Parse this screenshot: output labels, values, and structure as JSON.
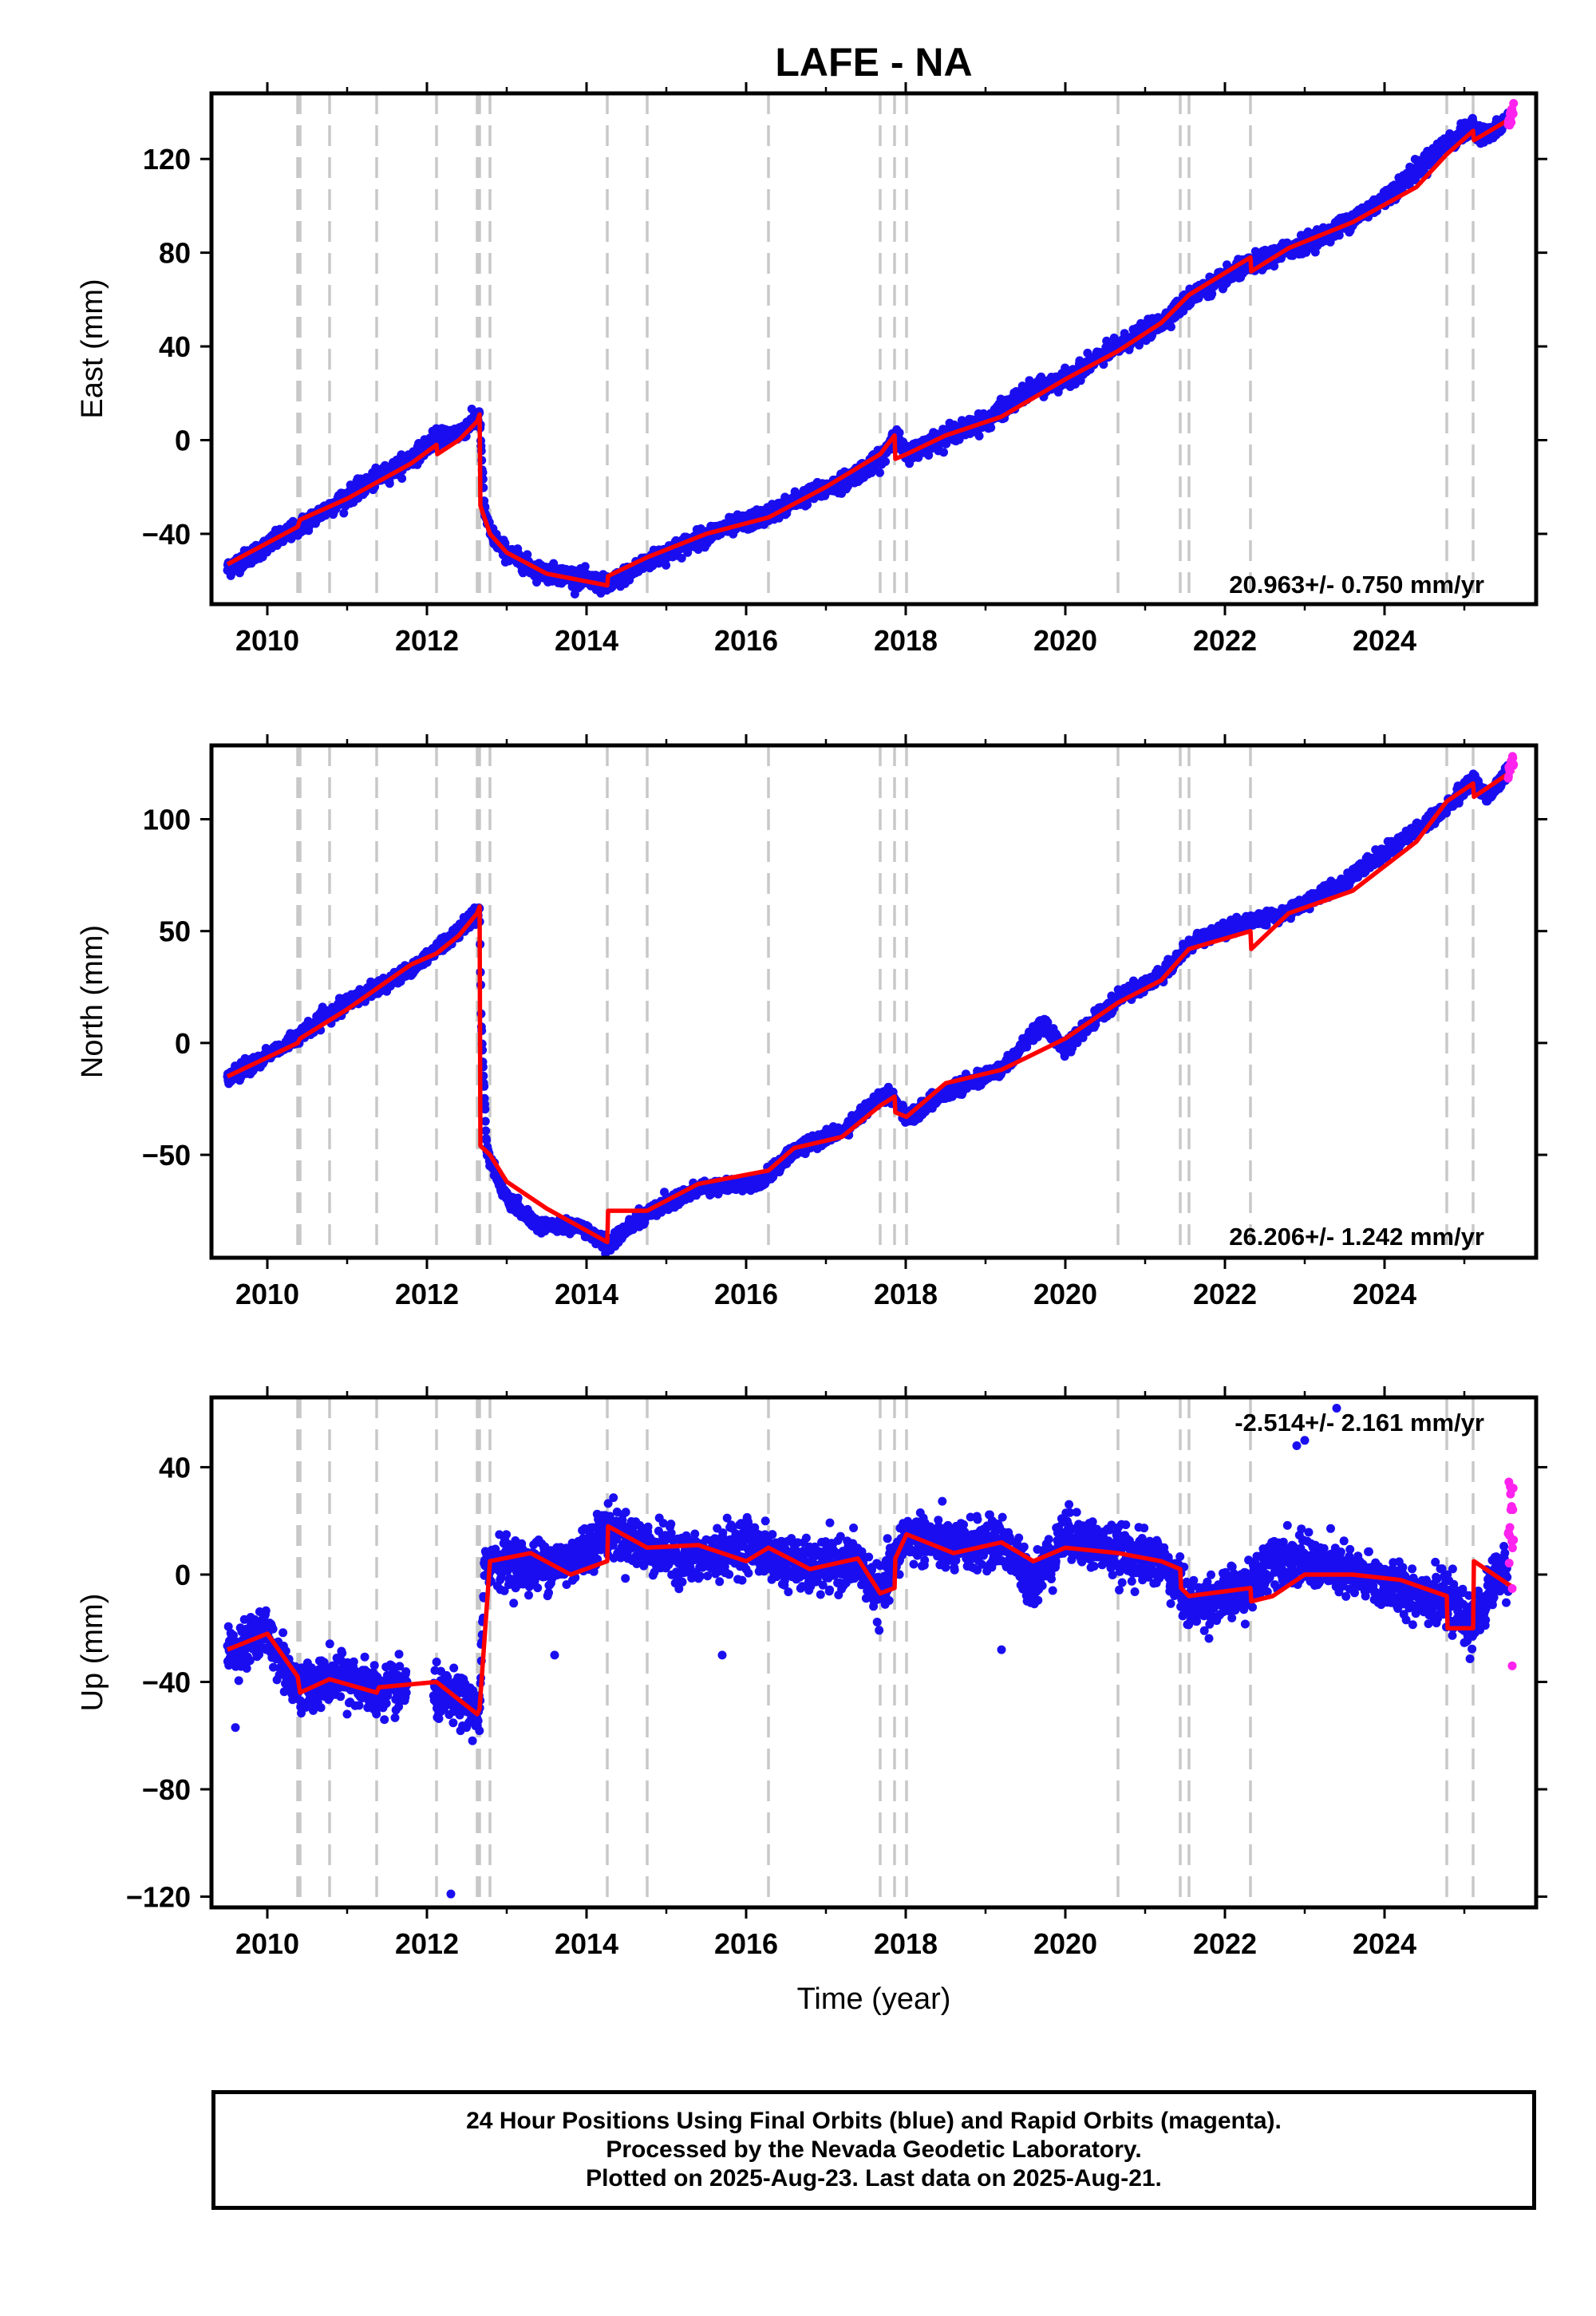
{
  "title": "LAFE - NA",
  "xlabel": "Time (year)",
  "colors": {
    "final": "#1a0ef0",
    "rapid": "#ff22ee",
    "model": "#ff0000",
    "step": "#c8c8c8"
  },
  "steps": [
    2010.38,
    2010.41,
    2010.78,
    2011.37,
    2012.12,
    2012.63,
    2012.66,
    2012.79,
    2014.26,
    2014.76,
    2016.28,
    2017.68,
    2017.86,
    2018.01,
    2020.66,
    2021.44,
    2021.55,
    2022.32,
    2024.78,
    2025.11
  ],
  "footer": {
    "line1": "24 Hour Positions Using Final Orbits (blue) and Rapid Orbits (magenta).",
    "line2": "Processed by the Nevada Geodetic Laboratory.",
    "line3": "Plotted on 2025-Aug-23. Last data on 2025-Aug-21."
  },
  "chart_data": [
    {
      "type": "scatter",
      "ylabel": "East (mm)",
      "rate": "20.963+/- 0.750 mm/yr",
      "xlim": [
        2009.3,
        2025.9
      ],
      "ylim": [
        -70,
        148
      ],
      "xticks": [
        2010,
        2012,
        2014,
        2016,
        2018,
        2020,
        2022,
        2024
      ],
      "yticks": [
        -40,
        0,
        40,
        80,
        120
      ],
      "noise": 3.0,
      "series": [
        {
          "x": [
            2009.5,
            2010.4,
            2011.0,
            2011.8,
            2012.12,
            2012.4,
            2012.66,
            2012.72,
            2012.8,
            2013.0,
            2013.4,
            2013.8,
            2014.26,
            2014.76,
            2015.2,
            2015.7,
            2016.2,
            2016.6,
            2017.2,
            2017.7,
            2017.86,
            2018.0,
            2018.5,
            2019.0,
            2019.5,
            2020.0,
            2020.66,
            2021.2,
            2021.6,
            2022.32,
            2022.7,
            2023.4,
            2024.0,
            2024.78,
            2025.11,
            2025.3,
            2025.62
          ],
          "y": [
            -55,
            -37,
            -24,
            -8,
            1,
            3,
            10,
            -30,
            -40,
            -48,
            -56,
            -58,
            -62,
            -52,
            -45,
            -38,
            -33,
            -26,
            -18,
            -8,
            3,
            -6,
            2,
            8,
            20,
            26,
            40,
            50,
            62,
            75,
            80,
            90,
            103,
            127,
            133,
            130,
            139
          ]
        },
        {
          "name": "model",
          "x": [
            2009.5,
            2010.38,
            2010.41,
            2011.0,
            2011.8,
            2012.12,
            2012.13,
            2012.4,
            2012.63,
            2012.66,
            2012.67,
            2012.79,
            2013.0,
            2013.5,
            2014.26,
            2014.27,
            2014.76,
            2015.5,
            2016.28,
            2017.0,
            2017.68,
            2017.86,
            2017.87,
            2018.01,
            2018.5,
            2019.2,
            2020.0,
            2020.66,
            2021.2,
            2021.55,
            2022.32,
            2022.33,
            2022.8,
            2023.6,
            2024.4,
            2024.78,
            2025.11,
            2025.12,
            2025.62
          ],
          "y": [
            -53,
            -37,
            -34,
            -25,
            -10,
            -2,
            -6,
            0,
            8,
            11,
            -28,
            -40,
            -48,
            -57,
            -62,
            -58,
            -50,
            -40,
            -33,
            -20,
            -6,
            2,
            -8,
            -6,
            2,
            10,
            26,
            38,
            50,
            62,
            78,
            72,
            82,
            93,
            108,
            122,
            132,
            128,
            138
          ]
        },
        {
          "name": "rapid",
          "x": [
            2025.55,
            2025.62
          ],
          "y": [
            134,
            142
          ]
        }
      ]
    },
    {
      "type": "scatter",
      "ylabel": "North (mm)",
      "rate": "26.206+/- 1.242 mm/yr",
      "xlim": [
        2009.3,
        2025.9
      ],
      "ylim": [
        -96,
        133
      ],
      "xticks": [
        2010,
        2012,
        2014,
        2016,
        2018,
        2020,
        2022,
        2024
      ],
      "yticks": [
        -50,
        0,
        50,
        100
      ],
      "noise": 2.5,
      "series": [
        {
          "x": [
            2009.5,
            2010.4,
            2011.0,
            2011.8,
            2012.12,
            2012.4,
            2012.66,
            2012.68,
            2012.75,
            2013.0,
            2013.4,
            2013.9,
            2014.26,
            2014.76,
            2015.4,
            2016.2,
            2016.6,
            2017.2,
            2017.7,
            2017.86,
            2018.01,
            2018.5,
            2019.2,
            2019.7,
            2020.0,
            2020.66,
            2021.2,
            2021.6,
            2022.32,
            2022.7,
            2023.4,
            2024.0,
            2024.78,
            2025.11,
            2025.3,
            2025.62
          ],
          "y": [
            -16,
            3,
            18,
            33,
            42,
            50,
            60,
            10,
            -48,
            -70,
            -82,
            -82,
            -90,
            -76,
            -65,
            -62,
            -48,
            -40,
            -23,
            -25,
            -34,
            -22,
            -12,
            8,
            -2,
            20,
            30,
            45,
            55,
            57,
            70,
            85,
            105,
            118,
            110,
            125
          ]
        },
        {
          "name": "model",
          "x": [
            2009.5,
            2010.38,
            2010.41,
            2011.0,
            2011.8,
            2012.12,
            2012.4,
            2012.63,
            2012.66,
            2012.67,
            2012.79,
            2013.0,
            2013.5,
            2014.26,
            2014.27,
            2014.76,
            2015.4,
            2016.28,
            2016.6,
            2017.2,
            2017.68,
            2017.86,
            2017.87,
            2018.01,
            2018.5,
            2019.2,
            2020.0,
            2020.66,
            2021.2,
            2021.55,
            2022.32,
            2022.33,
            2022.8,
            2023.6,
            2024.4,
            2024.78,
            2025.11,
            2025.12,
            2025.62
          ],
          "y": [
            -15,
            0,
            2,
            15,
            35,
            40,
            48,
            58,
            61,
            -46,
            -50,
            -62,
            -74,
            -89,
            -75,
            -75,
            -63,
            -57,
            -47,
            -42,
            -28,
            -24,
            -31,
            -33,
            -18,
            -12,
            2,
            18,
            28,
            42,
            50,
            42,
            58,
            68,
            90,
            108,
            116,
            110,
            122
          ]
        },
        {
          "name": "rapid",
          "x": [
            2025.55,
            2025.62
          ],
          "y": [
            120,
            127
          ]
        }
      ]
    },
    {
      "type": "scatter",
      "ylabel": "Up (mm)",
      "rate": "-2.514+/- 2.161 mm/yr",
      "xlim": [
        2009.3,
        2025.9
      ],
      "ylim": [
        -124,
        66
      ],
      "xticks": [
        2010,
        2012,
        2014,
        2016,
        2018,
        2020,
        2022,
        2024
      ],
      "yticks": [
        -120,
        -80,
        -40,
        0,
        40
      ],
      "noise": 7.5,
      "gap": [
        2011.75,
        2012.08
      ],
      "series": [
        {
          "x": [
            2009.5,
            2010.0,
            2010.38,
            2010.41,
            2011.0,
            2011.37,
            2011.75,
            2012.1,
            2012.4,
            2012.66,
            2012.72,
            2012.8,
            2013.3,
            2013.8,
            2014.26,
            2014.76,
            2015.4,
            2016.0,
            2016.28,
            2016.8,
            2017.4,
            2017.68,
            2017.86,
            2018.01,
            2018.6,
            2019.2,
            2019.6,
            2020.0,
            2020.66,
            2021.2,
            2021.44,
            2021.55,
            2022.32,
            2022.6,
            2023.0,
            2023.6,
            2024.2,
            2024.78,
            2025.11,
            2025.4
          ],
          "y": [
            -28,
            -22,
            -42,
            -42,
            -38,
            -44,
            -42,
            -45,
            -47,
            -52,
            0,
            6,
            3,
            5,
            17,
            10,
            5,
            12,
            7,
            2,
            5,
            -8,
            5,
            15,
            10,
            12,
            -3,
            15,
            8,
            5,
            -5,
            -12,
            -5,
            7,
            5,
            0,
            -5,
            -10,
            -20,
            0
          ]
        },
        {
          "name": "model",
          "x": [
            2009.5,
            2010.0,
            2010.38,
            2010.41,
            2010.78,
            2011.37,
            2011.4,
            2012.12,
            2012.63,
            2012.66,
            2012.79,
            2013.3,
            2013.8,
            2014.26,
            2014.27,
            2014.76,
            2015.4,
            2016.0,
            2016.28,
            2016.8,
            2017.4,
            2017.68,
            2017.86,
            2017.87,
            2018.01,
            2018.6,
            2019.2,
            2019.6,
            2020.0,
            2020.66,
            2021.2,
            2021.44,
            2021.45,
            2021.55,
            2022.32,
            2022.33,
            2022.6,
            2023.0,
            2023.6,
            2024.2,
            2024.78,
            2024.79,
            2025.11,
            2025.12,
            2025.62
          ],
          "y": [
            -28,
            -22,
            -38,
            -44,
            -39,
            -44,
            -42,
            -40,
            -52,
            -50,
            5,
            8,
            0,
            5,
            18,
            10,
            11,
            5,
            10,
            2,
            6,
            -7,
            -5,
            6,
            15,
            8,
            12,
            5,
            10,
            8,
            5,
            2,
            -5,
            -8,
            -5,
            -10,
            -8,
            0,
            0,
            -2,
            -8,
            -20,
            -20,
            5,
            -5
          ]
        },
        {
          "name": "rapid",
          "x": [
            2025.55,
            2025.62
          ],
          "y": [
            20,
            12
          ]
        }
      ]
    }
  ]
}
